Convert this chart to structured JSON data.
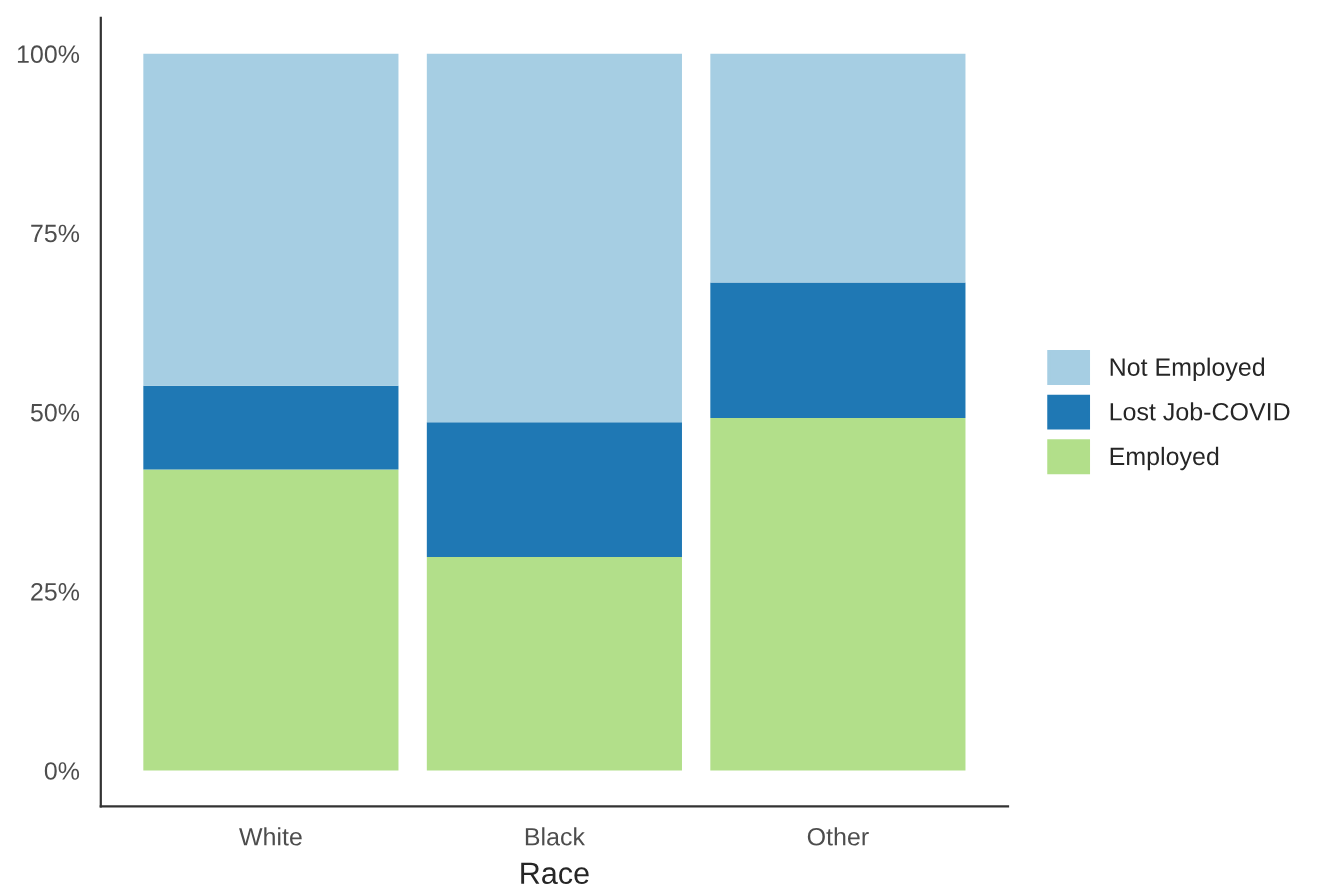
{
  "chart_data": {
    "type": "bar",
    "stacked": true,
    "xlabel": "Race",
    "categories": [
      "White",
      "Black",
      "Other"
    ],
    "series": [
      {
        "name": "Employed",
        "color": "#b2df8a",
        "values": [
          42.0,
          29.8,
          49.2
        ]
      },
      {
        "name": "Lost Job-COVID",
        "color": "#1f78b4",
        "values": [
          11.7,
          18.8,
          18.9
        ]
      },
      {
        "name": "Not Employed",
        "color": "#a6cee3",
        "values": [
          46.3,
          51.4,
          31.9
        ]
      }
    ],
    "ylim": [
      -5,
      105
    ],
    "yticks": [
      {
        "value": 0,
        "label": "0%"
      },
      {
        "value": 25,
        "label": "25%"
      },
      {
        "value": 50,
        "label": "50%"
      },
      {
        "value": 75,
        "label": "75%"
      },
      {
        "value": 100,
        "label": "100%"
      }
    ],
    "grid": false,
    "legend": "right"
  }
}
